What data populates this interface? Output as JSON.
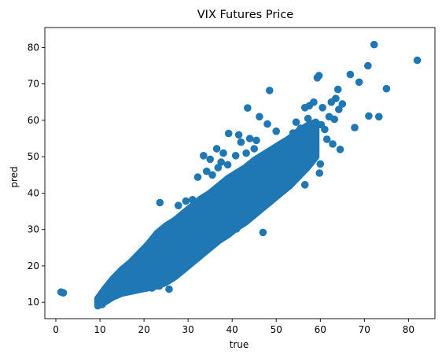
{
  "chart_data": {
    "type": "scatter",
    "title": "VIX Futures Price",
    "xlabel": "true",
    "ylabel": "pred",
    "xlim": [
      -2.5,
      86.0
    ],
    "ylim": [
      5.5,
      85.5
    ],
    "xticks": [
      0,
      10,
      20,
      30,
      40,
      50,
      60,
      70,
      80
    ],
    "yticks": [
      10,
      20,
      30,
      40,
      50,
      60,
      70,
      80
    ],
    "grid": false,
    "color": "#1f77b4",
    "density_bands": [
      {
        "x": 9.5,
        "ylow": 9.0,
        "yhigh": 11.0
      },
      {
        "x": 11,
        "ylow": 10.0,
        "yhigh": 13.5
      },
      {
        "x": 13,
        "ylow": 11.5,
        "yhigh": 16.5
      },
      {
        "x": 15,
        "ylow": 12.5,
        "yhigh": 19.0
      },
      {
        "x": 17,
        "ylow": 13.0,
        "yhigh": 21.0
      },
      {
        "x": 19,
        "ylow": 13.5,
        "yhigh": 23.5
      },
      {
        "x": 21,
        "ylow": 14.0,
        "yhigh": 26.0
      },
      {
        "x": 23,
        "ylow": 14.5,
        "yhigh": 29.0
      },
      {
        "x": 25,
        "ylow": 15.5,
        "yhigh": 31.0
      },
      {
        "x": 27,
        "ylow": 17.0,
        "yhigh": 32.5
      },
      {
        "x": 29,
        "ylow": 19.0,
        "yhigh": 34.5
      },
      {
        "x": 31,
        "ylow": 21.0,
        "yhigh": 36.5
      },
      {
        "x": 33,
        "ylow": 23.0,
        "yhigh": 38.5
      },
      {
        "x": 35,
        "ylow": 25.0,
        "yhigh": 40.0
      },
      {
        "x": 37,
        "ylow": 27.0,
        "yhigh": 42.0
      },
      {
        "x": 39,
        "ylow": 28.5,
        "yhigh": 44.0
      },
      {
        "x": 41,
        "ylow": 30.5,
        "yhigh": 45.5
      },
      {
        "x": 43,
        "ylow": 32.0,
        "yhigh": 47.0
      },
      {
        "x": 45,
        "ylow": 34.0,
        "yhigh": 49.0
      },
      {
        "x": 47,
        "ylow": 36.0,
        "yhigh": 50.5
      },
      {
        "x": 49,
        "ylow": 38.0,
        "yhigh": 52.0
      },
      {
        "x": 51,
        "ylow": 40.0,
        "yhigh": 53.5
      },
      {
        "x": 53,
        "ylow": 42.0,
        "yhigh": 55.0
      },
      {
        "x": 55,
        "ylow": 44.5,
        "yhigh": 57.0
      },
      {
        "x": 57,
        "ylow": 47.0,
        "yhigh": 58.5
      },
      {
        "x": 59,
        "ylow": 50.0,
        "yhigh": 59.5
      }
    ],
    "points": [
      [
        1.2,
        12.8
      ],
      [
        1.7,
        12.6
      ],
      [
        72.2,
        80.8
      ],
      [
        82.0,
        76.5
      ],
      [
        70.8,
        75.0
      ],
      [
        75.0,
        68.7
      ],
      [
        73.3,
        61.0
      ],
      [
        71.0,
        61.2
      ],
      [
        67.8,
        58.0
      ],
      [
        66.8,
        72.6
      ],
      [
        68.8,
        70.5
      ],
      [
        64.0,
        68.5
      ],
      [
        59.3,
        71.7
      ],
      [
        59.7,
        72.3
      ],
      [
        48.5,
        68.2
      ],
      [
        43.5,
        63.4
      ],
      [
        46.2,
        61.0
      ],
      [
        48.0,
        59.0
      ],
      [
        50.0,
        57.0
      ],
      [
        54.5,
        59.5
      ],
      [
        56.5,
        63.5
      ],
      [
        57.5,
        64.0
      ],
      [
        58.5,
        65.0
      ],
      [
        60.5,
        63.5
      ],
      [
        62.0,
        61.0
      ],
      [
        63.5,
        66.0
      ],
      [
        62.5,
        65.0
      ],
      [
        64.2,
        63.0
      ],
      [
        65.0,
        64.5
      ],
      [
        60.0,
        48.0
      ],
      [
        59.8,
        45.5
      ],
      [
        56.5,
        42.3
      ],
      [
        47.0,
        29.2
      ],
      [
        61.5,
        54.8
      ],
      [
        62.8,
        53.5
      ],
      [
        64.5,
        52.0
      ],
      [
        39.2,
        56.4
      ],
      [
        41.5,
        56.0
      ],
      [
        44.0,
        55.0
      ],
      [
        45.5,
        54.5
      ],
      [
        42.0,
        54.0
      ],
      [
        36.5,
        52.2
      ],
      [
        38.0,
        51.0
      ],
      [
        33.5,
        50.3
      ],
      [
        35.0,
        49.3
      ],
      [
        37.5,
        48.5
      ],
      [
        39.0,
        47.8
      ],
      [
        32.2,
        44.4
      ],
      [
        35.5,
        45.0
      ],
      [
        23.6,
        37.4
      ],
      [
        27.8,
        36.6
      ],
      [
        29.5,
        37.8
      ],
      [
        31.0,
        38.2
      ],
      [
        25.3,
        17.2
      ],
      [
        26.5,
        18.8
      ],
      [
        27.5,
        20.2
      ],
      [
        28.2,
        21.5
      ],
      [
        29.0,
        22.6
      ],
      [
        30.8,
        24.0
      ],
      [
        32.5,
        25.5
      ],
      [
        34.5,
        26.8
      ],
      [
        36.0,
        27.5
      ],
      [
        38.5,
        28.5
      ],
      [
        41.0,
        30.2
      ],
      [
        23.8,
        15.6
      ],
      [
        25.7,
        13.6
      ],
      [
        23.5,
        14.5
      ],
      [
        21.8,
        13.9
      ],
      [
        12.8,
        15.8
      ],
      [
        14.5,
        16.8
      ],
      [
        15.8,
        18.8
      ],
      [
        17.0,
        20.4
      ],
      [
        18.5,
        21.6
      ],
      [
        20.0,
        22.8
      ],
      [
        55.0,
        51.0
      ],
      [
        53.0,
        50.5
      ],
      [
        51.5,
        49.0
      ],
      [
        57.5,
        55.0
      ],
      [
        58.5,
        56.5
      ],
      [
        52.5,
        54.0
      ],
      [
        53.8,
        56.5
      ],
      [
        55.5,
        57.8
      ],
      [
        49.5,
        50.0
      ],
      [
        50.5,
        46.5
      ],
      [
        52.0,
        47.0
      ],
      [
        54.0,
        48.5
      ],
      [
        45.0,
        52.2
      ],
      [
        43.2,
        51.0
      ],
      [
        40.8,
        50.3
      ],
      [
        36.8,
        47.0
      ],
      [
        34.2,
        46.0
      ],
      [
        46.5,
        44.5
      ],
      [
        48.2,
        42.5
      ],
      [
        50.2,
        44.2
      ],
      [
        44.8,
        39.0
      ],
      [
        42.5,
        36.0
      ],
      [
        45.5,
        37.0
      ],
      [
        47.5,
        40.5
      ],
      [
        49.0,
        43.0
      ],
      [
        51.0,
        42.0
      ],
      [
        58.0,
        53.5
      ],
      [
        56.0,
        52.5
      ],
      [
        61.0,
        57.5
      ],
      [
        60.2,
        58.8
      ],
      [
        57.2,
        60.5
      ],
      [
        63.2,
        60.3
      ],
      [
        9.8,
        9.6
      ],
      [
        10.5,
        9.4
      ],
      [
        10.2,
        10.1
      ],
      [
        30.5,
        31.0
      ],
      [
        33.0,
        34.5
      ],
      [
        28.0,
        29.0
      ],
      [
        24.5,
        25.5
      ]
    ]
  }
}
